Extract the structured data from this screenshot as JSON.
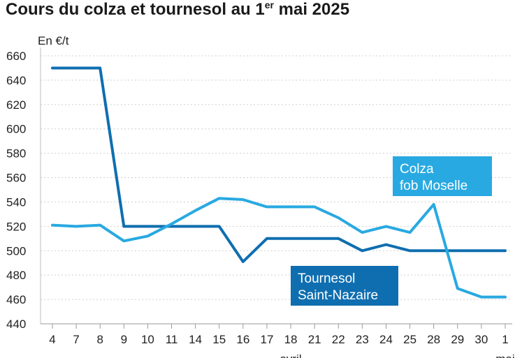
{
  "title": {
    "text": "Cours du colza et tournesol au 1",
    "sup": "er",
    "tail": " mai 2025"
  },
  "chart_data": {
    "type": "line",
    "ylabel": "En €/t",
    "ylim": [
      440,
      660
    ],
    "yticks": [
      440,
      460,
      480,
      500,
      520,
      540,
      560,
      580,
      600,
      620,
      640,
      660
    ],
    "categories": [
      "4",
      "7",
      "8",
      "9",
      "10",
      "11",
      "14",
      "15",
      "16",
      "17",
      "18",
      "21",
      "22",
      "23",
      "24",
      "25",
      "28",
      "29",
      "30",
      "1"
    ],
    "month_labels": [
      {
        "at": "18",
        "text": "avril"
      },
      {
        "at": "1",
        "text": "mai"
      }
    ],
    "grid": true,
    "series": [
      {
        "name": "Tournesol Saint-Nazaire",
        "color": "#0f6eb0",
        "values": [
          650,
          650,
          650,
          520,
          520,
          520,
          520,
          520,
          491,
          510,
          510,
          510,
          510,
          500,
          505,
          500,
          500,
          500,
          500,
          500
        ]
      },
      {
        "name": "Colza fob Moselle",
        "color": "#29a9e1",
        "values": [
          521,
          520,
          521,
          508,
          512,
          522,
          533,
          543,
          542,
          536,
          536,
          536,
          527,
          515,
          520,
          515,
          538,
          469,
          462,
          462
        ]
      }
    ],
    "labels": {
      "colza": [
        "Colza",
        "fob Moselle"
      ],
      "tournesol": [
        "Tournesol",
        "Saint-Nazaire"
      ]
    }
  }
}
